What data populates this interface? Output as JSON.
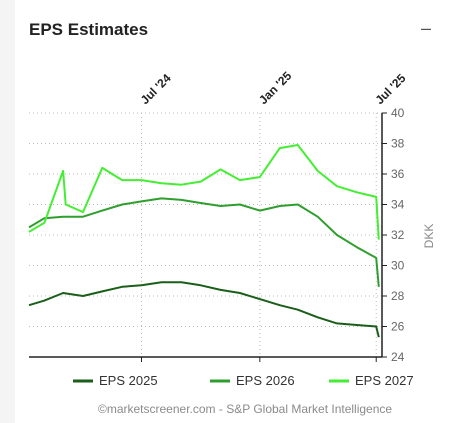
{
  "widget": {
    "title": "EPS Estimates",
    "collapse_icon": "minus-icon",
    "footer": "©marketscreener.com - S&P Global Market Intelligence"
  },
  "chart_data": {
    "type": "line",
    "title": "EPS Estimates",
    "ylabel": "DKK",
    "xlabel": "",
    "ylim": [
      24,
      40
    ],
    "yticks": [
      24,
      26,
      28,
      30,
      32,
      34,
      36,
      38,
      40
    ],
    "xlim": [
      "2024-01-08",
      "2025-07-10"
    ],
    "xticks": [
      {
        "date": "2024-07-01",
        "label": "Jul '24"
      },
      {
        "date": "2025-01-01",
        "label": "Jan '25"
      },
      {
        "date": "2025-07-01",
        "label": "Jul '25"
      }
    ],
    "grid": true,
    "legend_position": "bottom",
    "series": [
      {
        "name": "EPS 2025",
        "color": "#1a5e1a",
        "points": [
          [
            "2024-01-08",
            27.4
          ],
          [
            "2024-02-01",
            27.7
          ],
          [
            "2024-03-01",
            28.2
          ],
          [
            "2024-04-01",
            28.0
          ],
          [
            "2024-05-01",
            28.3
          ],
          [
            "2024-06-01",
            28.6
          ],
          [
            "2024-07-01",
            28.7
          ],
          [
            "2024-08-01",
            28.9
          ],
          [
            "2024-09-01",
            28.9
          ],
          [
            "2024-10-01",
            28.7
          ],
          [
            "2024-11-01",
            28.4
          ],
          [
            "2024-12-01",
            28.2
          ],
          [
            "2025-01-01",
            27.8
          ],
          [
            "2025-02-01",
            27.4
          ],
          [
            "2025-03-01",
            27.1
          ],
          [
            "2025-04-01",
            26.6
          ],
          [
            "2025-05-01",
            26.2
          ],
          [
            "2025-06-01",
            26.1
          ],
          [
            "2025-07-01",
            26.0
          ],
          [
            "2025-07-05",
            25.3
          ]
        ]
      },
      {
        "name": "EPS 2026",
        "color": "#2e9e2e",
        "points": [
          [
            "2024-01-08",
            32.5
          ],
          [
            "2024-02-01",
            33.1
          ],
          [
            "2024-03-01",
            33.2
          ],
          [
            "2024-04-01",
            33.2
          ],
          [
            "2024-05-01",
            33.6
          ],
          [
            "2024-06-01",
            34.0
          ],
          [
            "2024-07-01",
            34.2
          ],
          [
            "2024-08-01",
            34.4
          ],
          [
            "2024-09-01",
            34.3
          ],
          [
            "2024-10-01",
            34.1
          ],
          [
            "2024-11-01",
            33.9
          ],
          [
            "2024-12-01",
            34.0
          ],
          [
            "2025-01-01",
            33.6
          ],
          [
            "2025-02-01",
            33.9
          ],
          [
            "2025-03-01",
            34.0
          ],
          [
            "2025-04-01",
            33.2
          ],
          [
            "2025-05-01",
            32.0
          ],
          [
            "2025-06-01",
            31.2
          ],
          [
            "2025-07-01",
            30.5
          ],
          [
            "2025-07-05",
            28.6
          ]
        ]
      },
      {
        "name": "EPS 2027",
        "color": "#44ee33",
        "points": [
          [
            "2024-01-08",
            32.2
          ],
          [
            "2024-02-01",
            32.8
          ],
          [
            "2024-03-01",
            36.2
          ],
          [
            "2024-03-05",
            34.0
          ],
          [
            "2024-04-01",
            33.5
          ],
          [
            "2024-05-01",
            36.4
          ],
          [
            "2024-06-01",
            35.6
          ],
          [
            "2024-07-01",
            35.6
          ],
          [
            "2024-08-01",
            35.4
          ],
          [
            "2024-09-01",
            35.3
          ],
          [
            "2024-10-01",
            35.5
          ],
          [
            "2024-11-01",
            36.3
          ],
          [
            "2024-12-01",
            35.6
          ],
          [
            "2025-01-01",
            35.8
          ],
          [
            "2025-02-01",
            37.7
          ],
          [
            "2025-03-01",
            37.9
          ],
          [
            "2025-04-01",
            36.2
          ],
          [
            "2025-05-01",
            35.2
          ],
          [
            "2025-06-01",
            34.8
          ],
          [
            "2025-07-01",
            34.5
          ],
          [
            "2025-07-05",
            31.7
          ]
        ]
      }
    ]
  }
}
